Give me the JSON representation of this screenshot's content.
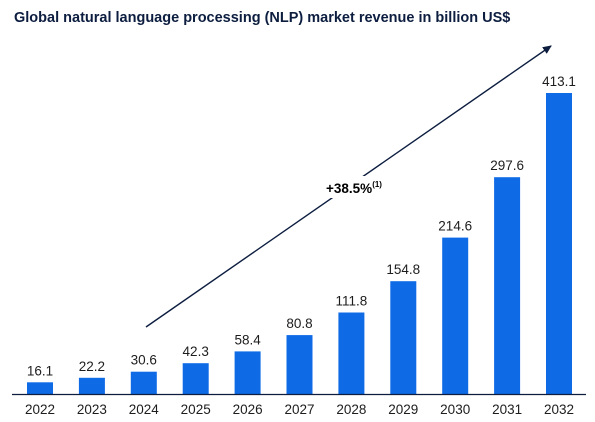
{
  "chart_data": {
    "type": "bar",
    "title": "Global natural language processing (NLP) market revenue in billion US$",
    "categories": [
      "2022",
      "2023",
      "2024",
      "2025",
      "2026",
      "2027",
      "2028",
      "2029",
      "2030",
      "2031",
      "2032"
    ],
    "values": [
      16.1,
      22.2,
      30.6,
      42.3,
      58.4,
      80.8,
      111.8,
      154.8,
      214.6,
      297.6,
      413.1
    ],
    "value_labels": [
      "16.1",
      "22.2",
      "30.6",
      "42.3",
      "58.4",
      "80.8",
      "111.8",
      "154.8",
      "214.6",
      "297.6",
      "413.1"
    ],
    "xlabel": "",
    "ylabel": "",
    "ylim": [
      0,
      413.1
    ],
    "grid": false,
    "bar_color": "#0f6ae6",
    "annotation": {
      "text": "+38.5%",
      "footnote": "(1)"
    }
  }
}
